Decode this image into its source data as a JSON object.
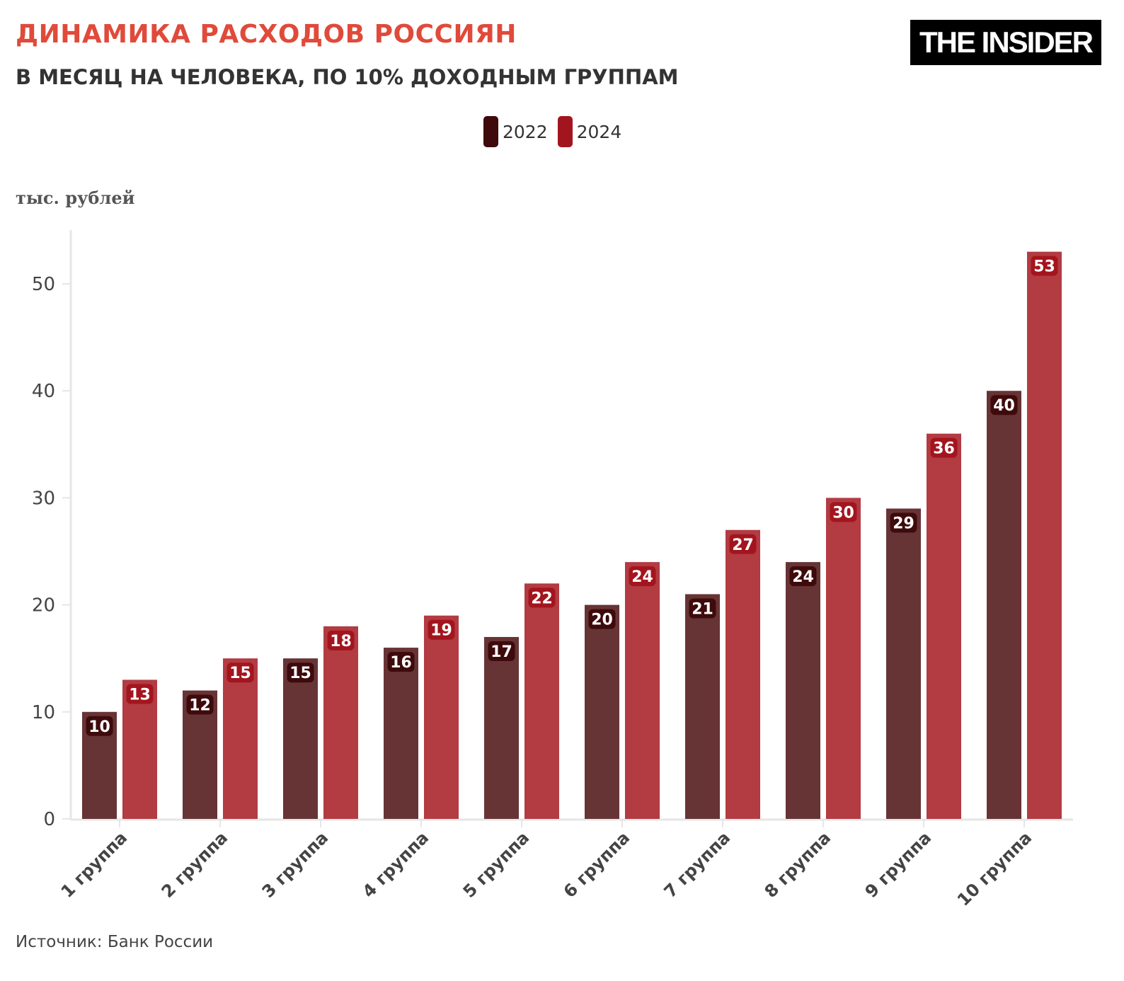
{
  "header": {
    "title": "ДИНАМИКА РАСХОДОВ РОССИЯН",
    "subtitle": "В МЕСЯЦ НА ЧЕЛОВЕКА, ПО 10% ДОХОДНЫМ ГРУППАМ",
    "logo": "THE INSIDER"
  },
  "unit_label": "тыс. рублей",
  "source": "Источник: Банк России",
  "colors": {
    "title": "#e04a3a",
    "series_2022": "#673436",
    "series_2024": "#b33b42",
    "legend_2022": "#3e0a0c",
    "legend_2024": "#a3151e",
    "label_bg_2022": "#3e0a0c",
    "label_bg_2024": "#a3151e"
  },
  "chart_data": {
    "type": "bar",
    "title": "ДИНАМИКА РАСХОДОВ РОССИЯН",
    "subtitle": "В МЕСЯЦ НА ЧЕЛОВЕКА, ПО 10% ДОХОДНЫМ ГРУППАМ",
    "ylabel": "тыс. рублей",
    "xlabel": "",
    "categories": [
      "1 группа",
      "2 группа",
      "3 группа",
      "4 группа",
      "5 группа",
      "6 группа",
      "7 группа",
      "8 группа",
      "9 группа",
      "10 группа"
    ],
    "series": [
      {
        "name": "2022",
        "values": [
          10,
          12,
          15,
          16,
          17,
          20,
          21,
          24,
          29,
          40
        ]
      },
      {
        "name": "2024",
        "values": [
          13,
          15,
          18,
          19,
          22,
          24,
          27,
          30,
          36,
          53
        ]
      }
    ],
    "ylim": [
      0,
      55
    ],
    "yticks": [
      0,
      10,
      20,
      30,
      40,
      50
    ],
    "grid": false,
    "legend_position": "top-center",
    "data_labels": true
  }
}
